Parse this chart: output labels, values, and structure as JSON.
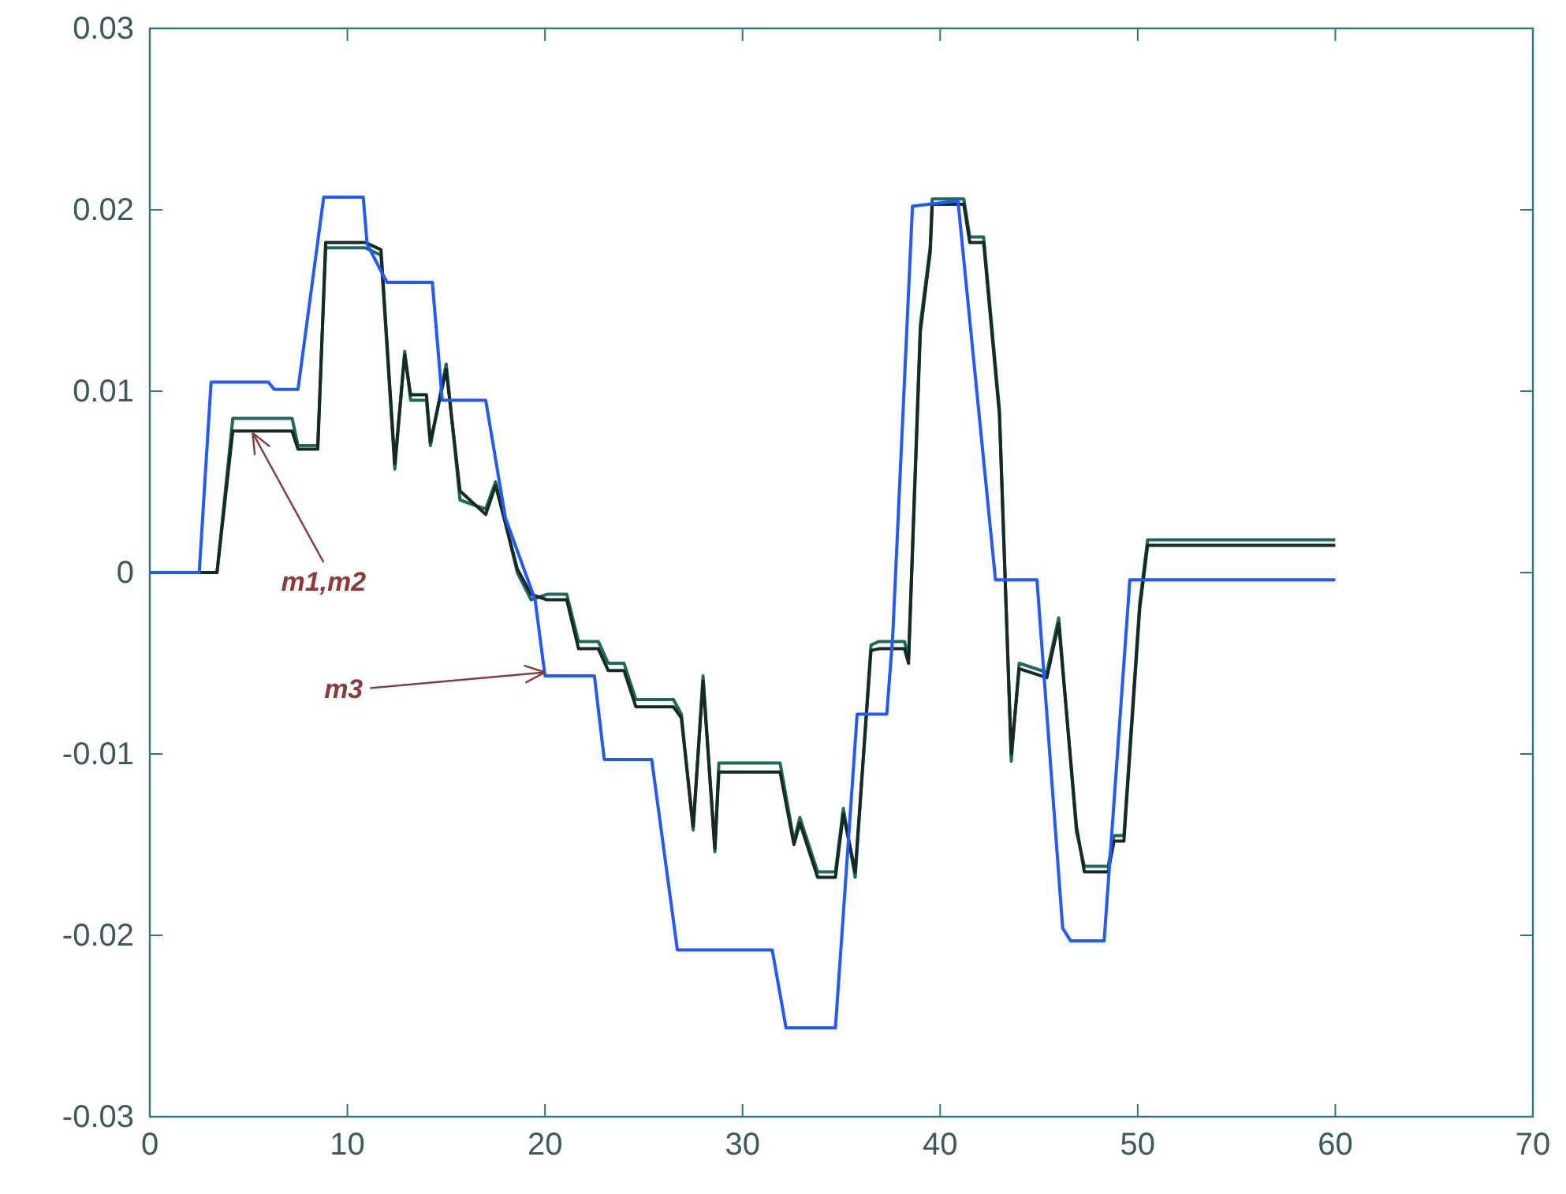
{
  "chart_data": {
    "type": "line",
    "xlim": [
      0,
      70
    ],
    "ylim": [
      -0.03,
      0.03
    ],
    "xticks": [
      0,
      10,
      20,
      30,
      40,
      50,
      60,
      70
    ],
    "yticks": [
      -0.03,
      -0.02,
      -0.01,
      0,
      0.01,
      0.02,
      0.03
    ],
    "grid": false,
    "marker": "none",
    "line_style": "solid",
    "series": [
      {
        "color": "#1b6b5a",
        "x": [
          0,
          3.4,
          4.2,
          7.2,
          7.5,
          8.5,
          8.9,
          10.9,
          11.7,
          12.4,
          12.9,
          13.2,
          14.0,
          14.2,
          15.0,
          15.7,
          17.0,
          17.5,
          18.6,
          19.3,
          20.1,
          21.1,
          21.7,
          22.7,
          23.2,
          24.0,
          24.6,
          26.5,
          26.9,
          27.5,
          28.0,
          28.6,
          28.8,
          31.9,
          32.6,
          32.9,
          33.8,
          34.7,
          35.1,
          35.7,
          36.5,
          36.9,
          38.2,
          38.4,
          39.0,
          39.5,
          39.6,
          41.2,
          41.5,
          42.2,
          43.0,
          43.6,
          44.0,
          45.4,
          46.0,
          46.9,
          47.3,
          48.5,
          48.8,
          49.3,
          50.1,
          50.5,
          60
        ],
        "values": [
          0,
          0,
          0.0085,
          0.0085,
          0.007,
          0.007,
          0.0179,
          0.0179,
          0.0175,
          0.0057,
          0.0122,
          0.0095,
          0.0095,
          0.007,
          0.0115,
          0.004,
          0.0035,
          0.005,
          0,
          -0.0015,
          -0.0012,
          -0.0012,
          -0.0038,
          -0.0038,
          -0.005,
          -0.005,
          -0.007,
          -0.007,
          -0.0078,
          -0.0142,
          -0.0057,
          -0.0154,
          -0.0105,
          -0.0105,
          -0.0148,
          -0.0135,
          -0.0165,
          -0.0165,
          -0.013,
          -0.0168,
          -0.004,
          -0.0038,
          -0.0038,
          -0.0047,
          0.0137,
          0.018,
          0.0206,
          0.0206,
          0.0185,
          0.0185,
          0.009,
          -0.0104,
          -0.005,
          -0.0055,
          -0.0025,
          -0.0143,
          -0.0162,
          -0.0162,
          -0.0145,
          -0.0145,
          -0.0017,
          0.0018,
          0.0018
        ]
      },
      {
        "color": "#142a22",
        "x": [
          0,
          3.4,
          4.2,
          7.2,
          7.5,
          8.5,
          8.9,
          10.9,
          11.7,
          12.4,
          12.9,
          13.2,
          14.0,
          14.2,
          15.0,
          15.7,
          17.0,
          17.5,
          18.6,
          19.3,
          20.1,
          21.1,
          21.7,
          22.7,
          23.2,
          24.0,
          24.6,
          26.5,
          26.9,
          27.5,
          28.0,
          28.6,
          28.8,
          31.9,
          32.6,
          32.9,
          33.8,
          34.7,
          35.1,
          35.7,
          36.5,
          36.9,
          38.2,
          38.4,
          39.0,
          39.5,
          39.6,
          41.2,
          41.5,
          42.2,
          43.0,
          43.6,
          44.0,
          45.4,
          46.0,
          46.9,
          47.3,
          48.5,
          48.8,
          49.3,
          50.1,
          50.5,
          60
        ],
        "values": [
          0,
          0,
          0.0078,
          0.0078,
          0.0068,
          0.0068,
          0.0182,
          0.0182,
          0.0178,
          0.006,
          0.012,
          0.0098,
          0.0098,
          0.0072,
          0.0112,
          0.0045,
          0.0032,
          0.0048,
          0.0002,
          -0.0012,
          -0.0015,
          -0.0015,
          -0.0042,
          -0.0042,
          -0.0054,
          -0.0054,
          -0.0074,
          -0.0074,
          -0.008,
          -0.014,
          -0.006,
          -0.0152,
          -0.011,
          -0.011,
          -0.015,
          -0.0138,
          -0.0168,
          -0.0168,
          -0.0133,
          -0.0165,
          -0.0043,
          -0.0042,
          -0.0042,
          -0.005,
          0.0133,
          0.0177,
          0.0203,
          0.0203,
          0.0182,
          0.0182,
          0.0087,
          -0.01,
          -0.0053,
          -0.0058,
          -0.0028,
          -0.014,
          -0.0165,
          -0.0165,
          -0.0148,
          -0.0148,
          -0.002,
          0.0015,
          0.0015
        ]
      },
      {
        "color": "#1e5aff",
        "x": [
          0,
          2.5,
          3.1,
          6.0,
          6.3,
          7.5,
          8.8,
          10.8,
          11.0,
          12.0,
          14.3,
          14.8,
          17.0,
          18.0,
          19.0,
          19.5,
          20.0,
          22.5,
          23.0,
          25.4,
          26.7,
          31.5,
          32.2,
          34.7,
          35.8,
          37.3,
          37.6,
          38.6,
          40.9,
          42.8,
          44.9,
          46.2,
          46.6,
          48.3,
          49.6,
          60
        ],
        "values": [
          0,
          0,
          0.0105,
          0.0105,
          0.0101,
          0.0101,
          0.0207,
          0.0207,
          0.0181,
          0.016,
          0.016,
          0.0095,
          0.0095,
          0.003,
          0,
          -0.0015,
          -0.0057,
          -0.0057,
          -0.0103,
          -0.0103,
          -0.0208,
          -0.0208,
          -0.0251,
          -0.0251,
          -0.0078,
          -0.0078,
          -0.0035,
          0.0202,
          0.0205,
          -0.0004,
          -0.0004,
          -0.0196,
          -0.0203,
          -0.0203,
          -0.0004,
          -0.0004
        ]
      }
    ],
    "annotations": [
      {
        "text": "m1,m2",
        "x": 5.2,
        "y": 0.0077
      },
      {
        "text": "m3",
        "x": 20,
        "y": -0.0055
      }
    ]
  }
}
